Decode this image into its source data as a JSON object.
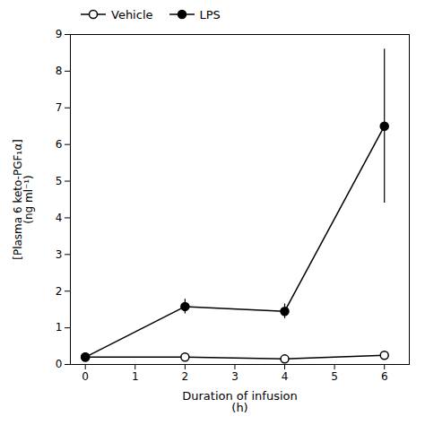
{
  "chart_data": {
    "type": "line",
    "x": [
      0,
      2,
      4,
      6
    ],
    "xlabel": "Duration of infusion\n(h)",
    "ylabel": "[Plasma 6 keto-PGF₁α]\n(ng ml⁻¹)",
    "series": [
      {
        "name": "Vehicle",
        "color": "#000000",
        "marker": "open_circle",
        "values": [
          0.2,
          0.2,
          0.15,
          0.25
        ],
        "yerr": [
          0.1,
          0.1,
          0.08,
          0.1
        ]
      },
      {
        "name": "LPS",
        "color": "#000000",
        "marker": "circle",
        "values": [
          0.2,
          1.58,
          1.45,
          6.5
        ],
        "yerr": [
          0.1,
          0.2,
          0.2,
          2.1
        ]
      }
    ],
    "xlim": [
      -0.3,
      6.5
    ],
    "ylim": [
      0,
      9
    ],
    "xticks": [
      0,
      1,
      2,
      3,
      4,
      5,
      6
    ],
    "yticks": [
      0,
      1,
      2,
      3,
      4,
      5,
      6,
      7,
      8,
      9
    ],
    "grid": false
  }
}
